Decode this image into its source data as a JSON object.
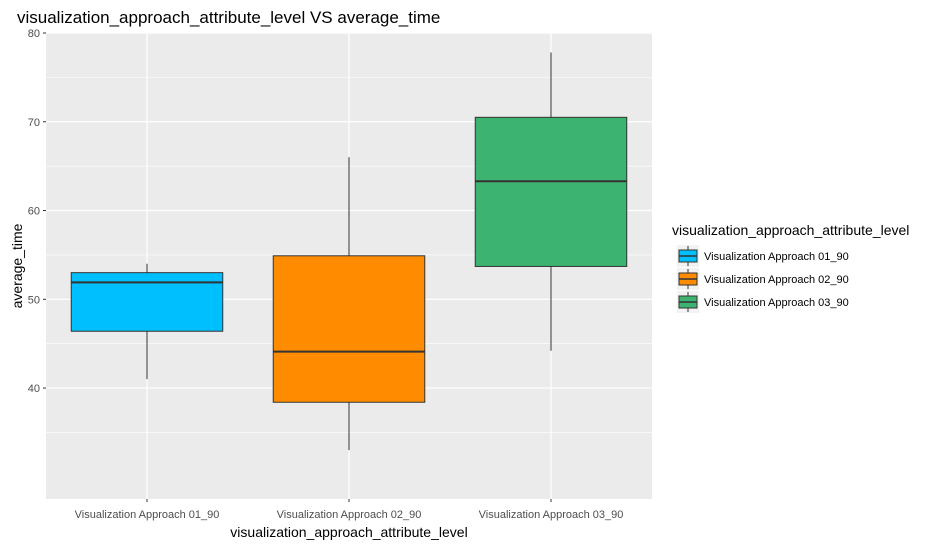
{
  "chart_data": {
    "type": "boxplot",
    "title": "visualization_approach_attribute_level VS average_time",
    "xlabel": "visualization_approach_attribute_level",
    "ylabel": "average_time",
    "ylim": [
      27.5,
      80
    ],
    "y_ticks": [
      40,
      50,
      60,
      70,
      80
    ],
    "grid": true,
    "legend_title": "visualization_approach_attribute_level",
    "legend_position": "right",
    "categories": [
      "Visualization Approach 01_90",
      "Visualization Approach 02_90",
      "Visualization Approach 03_90"
    ],
    "boxes": [
      {
        "category": "Visualization Approach 01_90",
        "min": 41.0,
        "q1": 46.4,
        "median": 51.9,
        "q3": 53.0,
        "max": 54.0,
        "color": "#00BFFF"
      },
      {
        "category": "Visualization Approach 02_90",
        "min": 33.0,
        "q1": 38.4,
        "median": 44.1,
        "q3": 54.9,
        "max": 66.0,
        "color": "#FF8C00"
      },
      {
        "category": "Visualization Approach 03_90",
        "min": 44.2,
        "q1": 53.7,
        "median": 63.3,
        "q3": 70.5,
        "max": 77.8,
        "color": "#3CB371"
      }
    ]
  }
}
